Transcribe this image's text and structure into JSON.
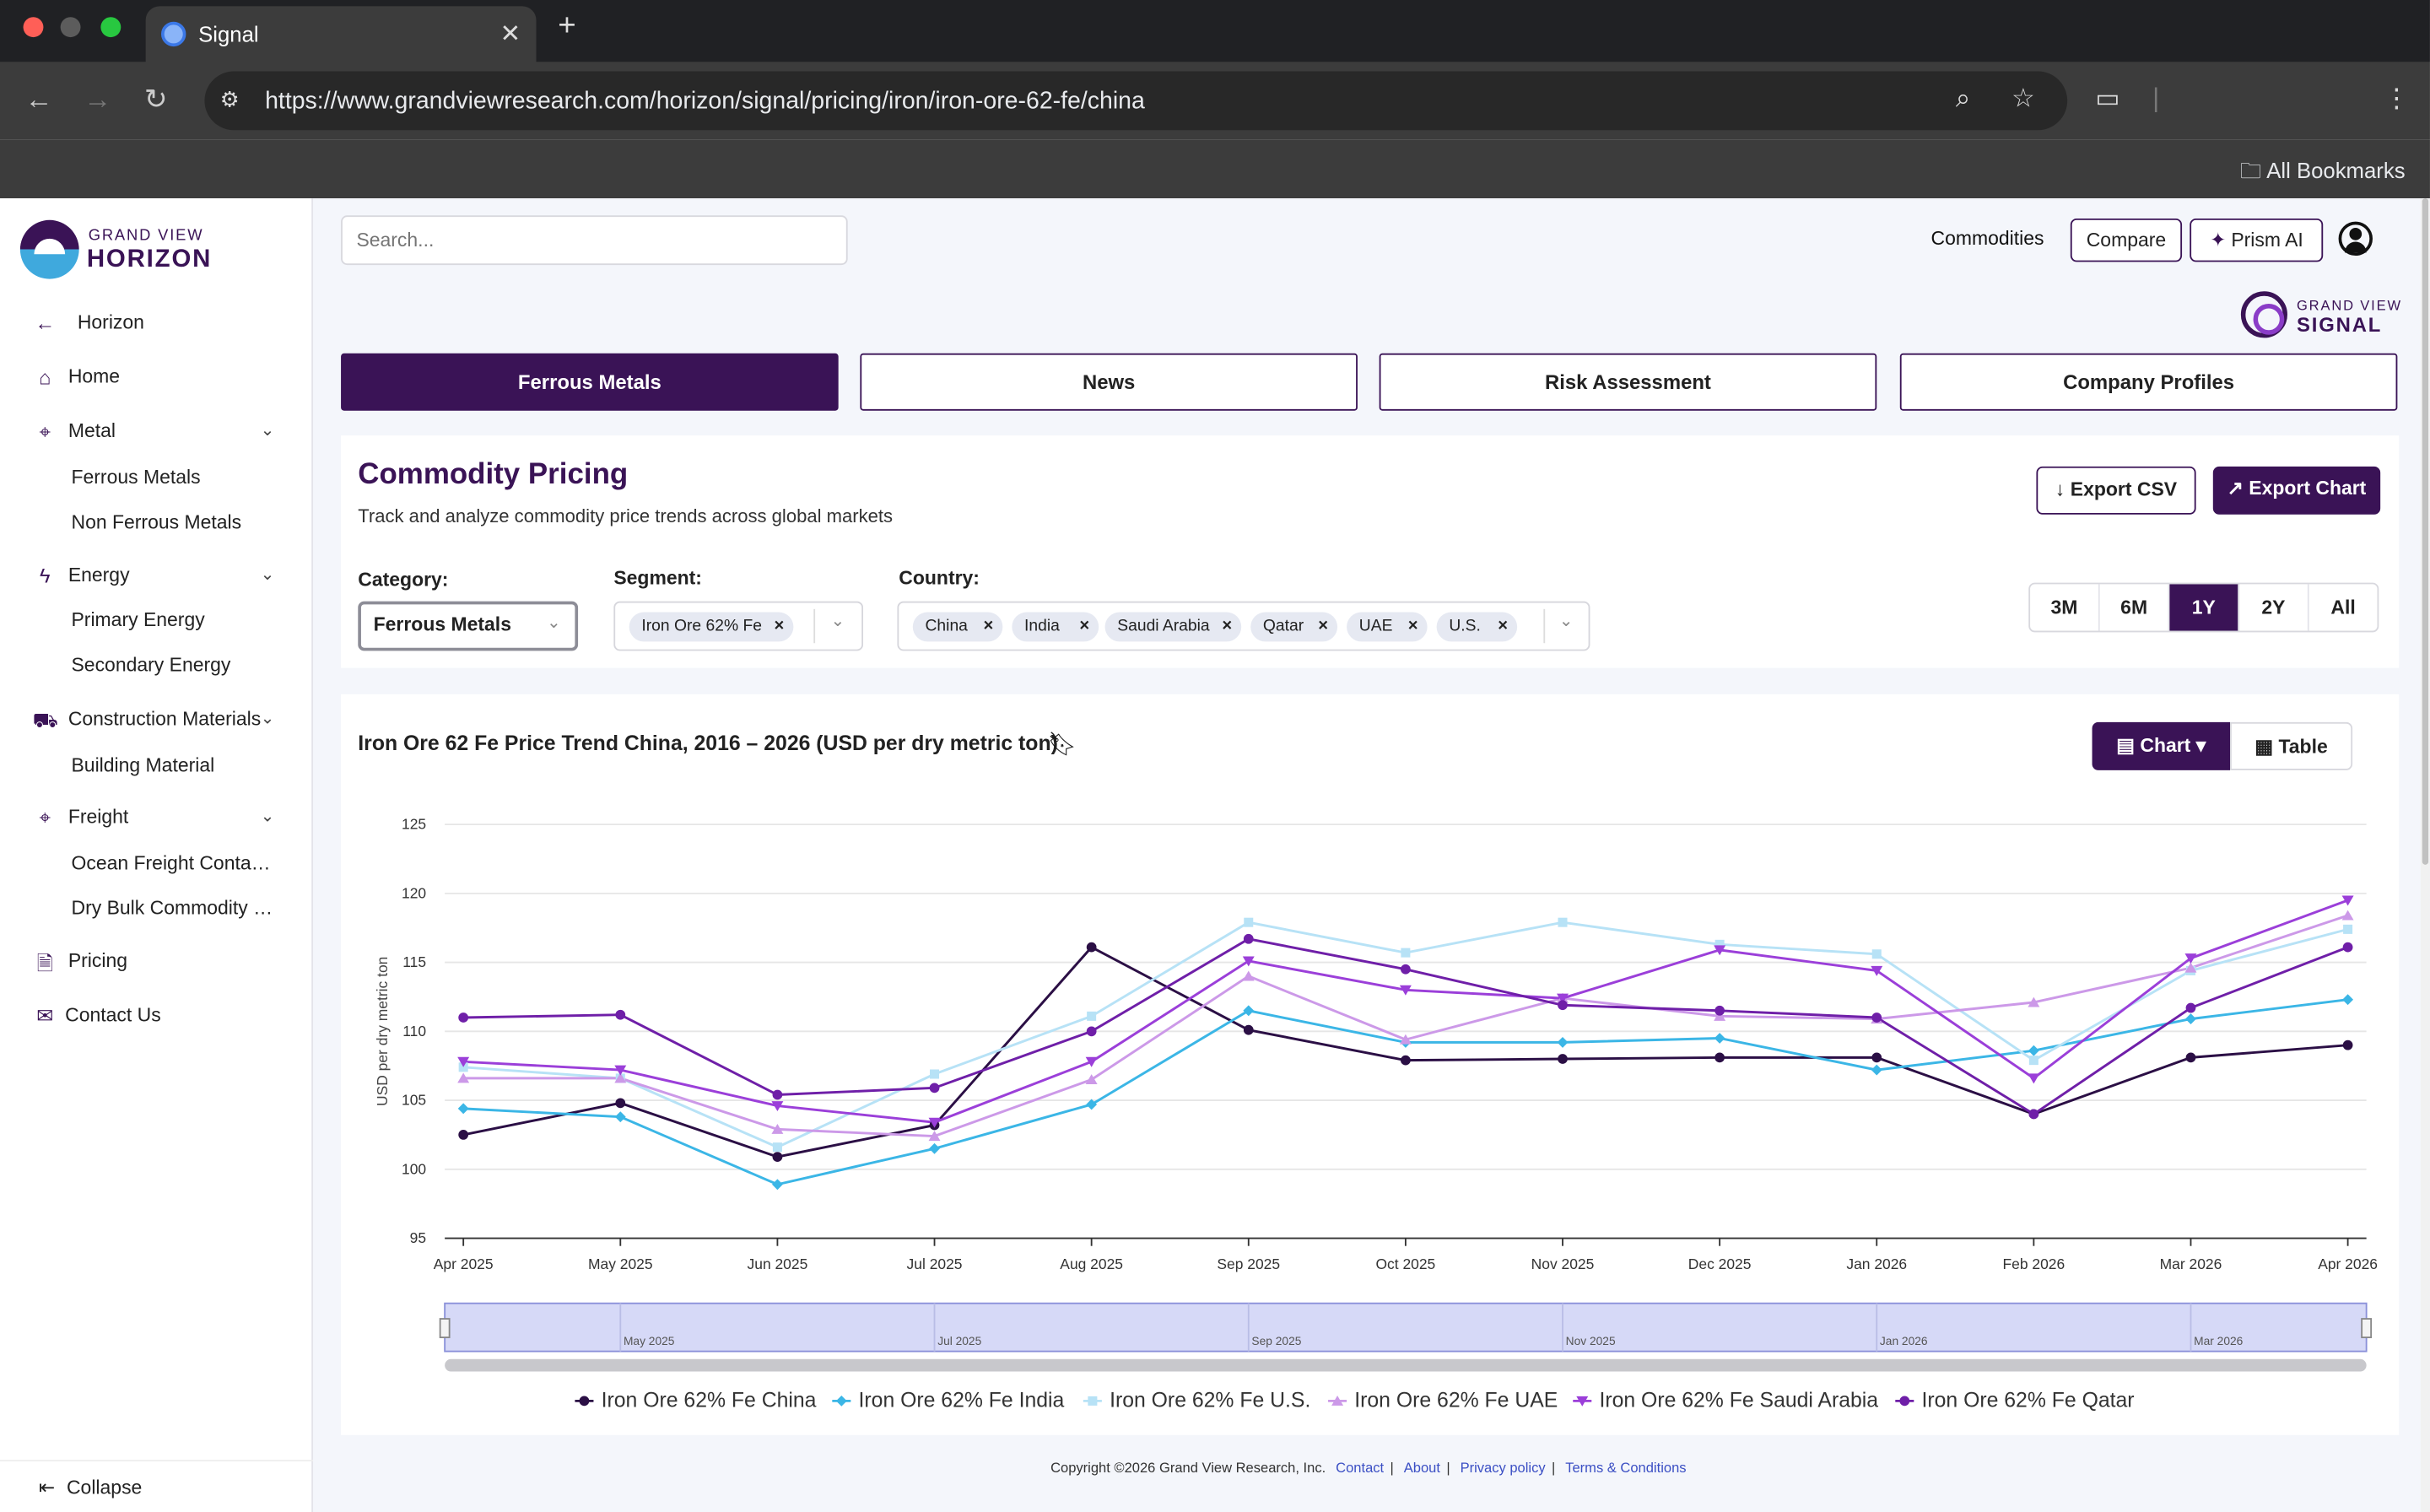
{
  "browser": {
    "tab_title": "Signal",
    "url_host": "https://www.grandviewresearch.com",
    "url_path": "/horizon/signal/pricing/iron/iron-ore-62-fe/china",
    "bookmarks_label": "All Bookmarks"
  },
  "sidebar": {
    "brand_top": "GRAND VIEW",
    "brand_bottom": "HORIZON",
    "back_label": "Horizon",
    "home_label": "Home",
    "metal_label": "Metal",
    "ferrous_label": "Ferrous Metals",
    "nonferrous_label": "Non Ferrous Metals",
    "energy_label": "Energy",
    "primary_energy_label": "Primary Energy",
    "secondary_energy_label": "Secondary Energy",
    "construction_label": "Construction Materials",
    "building_label": "Building Material",
    "freight_label": "Freight",
    "ocean_label": "Ocean Freight Contain...",
    "drybulk_label": "Dry Bulk Commodity F...",
    "pricing_label": "Pricing",
    "contact_label": "Contact Us",
    "collapse_label": "Collapse"
  },
  "header": {
    "search_placeholder": "Search...",
    "commodities_label": "Commodities",
    "compare_label": "Compare",
    "prism_label": "Prism AI",
    "signal_top": "GRAND VIEW",
    "signal_bottom": "SIGNAL"
  },
  "tabs": {
    "t1": "Ferrous Metals",
    "t2": "News",
    "t3": "Risk Assessment",
    "t4": "Company Profiles"
  },
  "pricing": {
    "title": "Commodity Pricing",
    "description": "Track and analyze commodity price trends across global markets",
    "export_csv": "Export CSV",
    "export_chart": "Export Chart",
    "category_label": "Category:",
    "category_value": "Ferrous Metals",
    "segment_label": "Segment:",
    "segment_chip": "Iron Ore 62% Fe",
    "country_label": "Country:",
    "countries": {
      "c1": "China",
      "c2": "India",
      "c3": "Saudi Arabia",
      "c4": "Qatar",
      "c5": "UAE",
      "c6": "U.S."
    },
    "ranges": {
      "r1": "3M",
      "r2": "6M",
      "r3": "1Y",
      "r4": "2Y",
      "r5": "All"
    },
    "range_active": "1Y"
  },
  "chart_panel": {
    "title": "Iron Ore 62 Fe Price Trend China, 2016 – 2026 (USD per dry metric ton)",
    "chart_btn": "Chart",
    "table_btn": "Table"
  },
  "chart_data": {
    "type": "line",
    "x": [
      "Apr 2025",
      "May 2025",
      "Jun 2025",
      "Jul 2025",
      "Aug 2025",
      "Sep 2025",
      "Oct 2025",
      "Nov 2025",
      "Dec 2025",
      "Jan 2026",
      "Feb 2026",
      "Mar 2026",
      "Apr 2026"
    ],
    "ylabel": "USD per dry metric ton",
    "ylim": [
      95,
      125
    ],
    "yticks": [
      95,
      100,
      105,
      110,
      115,
      120,
      125
    ],
    "grid": true,
    "legend_position": "bottom",
    "navigator_labels": [
      "May 2025",
      "Jul 2025",
      "Sep 2025",
      "Nov 2025",
      "Jan 2026",
      "Mar 2026"
    ],
    "series": [
      {
        "name": "Iron Ore 62% Fe China",
        "color": "#2b0f45",
        "marker": "circle",
        "values": [
          102.5,
          104.8,
          100.9,
          103.2,
          116.1,
          110.1,
          107.9,
          108.0,
          108.1,
          108.1,
          104.0,
          108.1,
          109.0
        ]
      },
      {
        "name": "Iron Ore 62% Fe India",
        "color": "#3bb6e6",
        "marker": "diamond",
        "values": [
          104.4,
          103.8,
          98.9,
          101.5,
          104.7,
          111.5,
          109.2,
          109.2,
          109.5,
          107.2,
          108.6,
          110.9,
          112.3
        ]
      },
      {
        "name": "Iron Ore 62% Fe U.S.",
        "color": "#b7e2f6",
        "marker": "square",
        "values": [
          107.4,
          106.6,
          101.6,
          106.9,
          111.1,
          117.9,
          115.7,
          117.9,
          116.3,
          115.6,
          107.9,
          114.4,
          117.4
        ]
      },
      {
        "name": "Iron Ore 62% Fe UAE",
        "color": "#cc99e8",
        "marker": "triangle",
        "values": [
          106.6,
          106.6,
          102.9,
          102.4,
          106.5,
          114.0,
          109.4,
          112.4,
          111.1,
          110.9,
          112.1,
          114.6,
          118.4
        ]
      },
      {
        "name": "Iron Ore 62% Fe Saudi Arabia",
        "color": "#9b3fd9",
        "marker": "triangle-down",
        "values": [
          107.8,
          107.2,
          104.6,
          103.4,
          107.8,
          115.1,
          113.0,
          112.4,
          115.9,
          114.4,
          106.6,
          115.3,
          119.5
        ]
      },
      {
        "name": "Iron Ore 62% Fe Qatar",
        "color": "#6f1fa8",
        "marker": "circle",
        "values": [
          111.0,
          111.2,
          105.4,
          105.9,
          110.0,
          116.7,
          114.5,
          111.9,
          111.5,
          111.0,
          104.0,
          111.7,
          116.1
        ]
      }
    ]
  },
  "footer": {
    "copyright": "Copyright ©2026 Grand View Research, Inc.",
    "contact": "Contact",
    "about": "About",
    "privacy": "Privacy policy",
    "terms": "Terms & Conditions"
  }
}
